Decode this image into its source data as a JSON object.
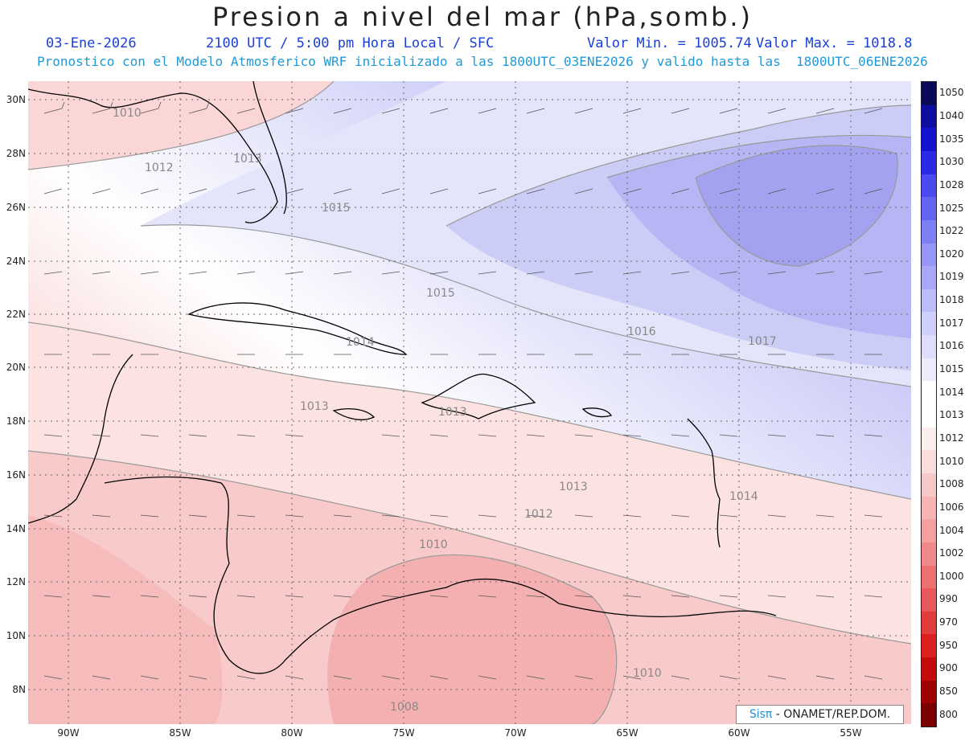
{
  "header": {
    "title": "Presion a nivel del mar (hPa,somb.)",
    "date": "03-Ene-2026",
    "time": "2100 UTC / 5:00 pm Hora Local / SFC",
    "min_label": "Valor Min. = 1005.74",
    "max_label": "Valor Max. = 1018.8",
    "forecast": "Pronostico con el Modelo Atmosferico WRF inicializado a las 1800UTC_03ENE2026 y valido hasta las  1800UTC_06ENE2026"
  },
  "axes": {
    "lat_labels": [
      "30N",
      "28N",
      "26N",
      "24N",
      "22N",
      "20N",
      "18N",
      "16N",
      "14N",
      "12N",
      "10N",
      "8N"
    ],
    "lon_labels": [
      "90W",
      "85W",
      "80W",
      "75W",
      "70W",
      "65W",
      "60W",
      "55W"
    ]
  },
  "isobar_labels": [
    {
      "text": "1010",
      "name": "isobar-1010-nw"
    },
    {
      "text": "1012",
      "name": "isobar-1012-gulf"
    },
    {
      "text": "1013",
      "name": "isobar-1013-florida"
    },
    {
      "text": "1015",
      "name": "isobar-1015-bahamas"
    },
    {
      "text": "1015",
      "name": "isobar-1015-central"
    },
    {
      "text": "1016",
      "name": "isobar-1016-east"
    },
    {
      "text": "1017",
      "name": "isobar-1017-atlantic"
    },
    {
      "text": "1014",
      "name": "isobar-1014-cuba"
    },
    {
      "text": "1013",
      "name": "isobar-1013-jamaica"
    },
    {
      "text": "1013",
      "name": "isobar-1013-hispaniola"
    },
    {
      "text": "1013",
      "name": "isobar-1013-caribbean"
    },
    {
      "text": "1014",
      "name": "isobar-1014-antilles"
    },
    {
      "text": "1012",
      "name": "isobar-1012-caribbean"
    },
    {
      "text": "1010",
      "name": "isobar-1010-caribbean"
    },
    {
      "text": "1010",
      "name": "isobar-1010-venezuela"
    },
    {
      "text": "1008",
      "name": "isobar-1008-colombia"
    }
  ],
  "colorbar": {
    "labels": [
      "1050",
      "1040",
      "1035",
      "1030",
      "1028",
      "1025",
      "1022",
      "1020",
      "1019",
      "1018",
      "1017",
      "1016",
      "1015",
      "1014",
      "1013",
      "1012",
      "1010",
      "1008",
      "1006",
      "1004",
      "1002",
      "1000",
      "990",
      "970",
      "950",
      "900",
      "850",
      "800"
    ],
    "colors": [
      "#0a0a5a",
      "#0d0da0",
      "#1414d0",
      "#2a2ae6",
      "#4a4af0",
      "#6464f2",
      "#7e7ef5",
      "#9696f6",
      "#a8a8f7",
      "#bcbcf9",
      "#cfcffb",
      "#dedefc",
      "#ececfd",
      "#ffffff",
      "#ffffff",
      "#fdeeee",
      "#fbdcdc",
      "#f8c8c8",
      "#f6b4b4",
      "#f4a0a0",
      "#f08a8a",
      "#ec7070",
      "#e85858",
      "#e23c3c",
      "#dc2020",
      "#c40a0a",
      "#a00000",
      "#7a0000"
    ]
  },
  "credit": {
    "sis": "Sisπ",
    "org": " - ONAMET/REP.DOM."
  }
}
